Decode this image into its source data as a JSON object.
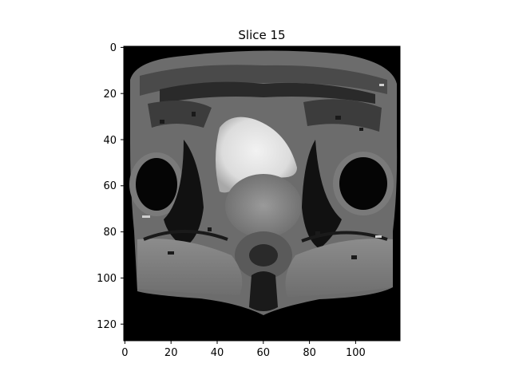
{
  "title": "Slice 15",
  "image": {
    "description": "",
    "colormap": "gray",
    "background_color": "#000000"
  },
  "axes": {
    "x_ticks": [
      "0",
      "20",
      "40",
      "60",
      "80",
      "100"
    ],
    "y_ticks": [
      "0",
      "20",
      "40",
      "60",
      "80",
      "100",
      "120"
    ],
    "x_range": [
      0,
      119
    ],
    "y_range": [
      0,
      127
    ]
  }
}
